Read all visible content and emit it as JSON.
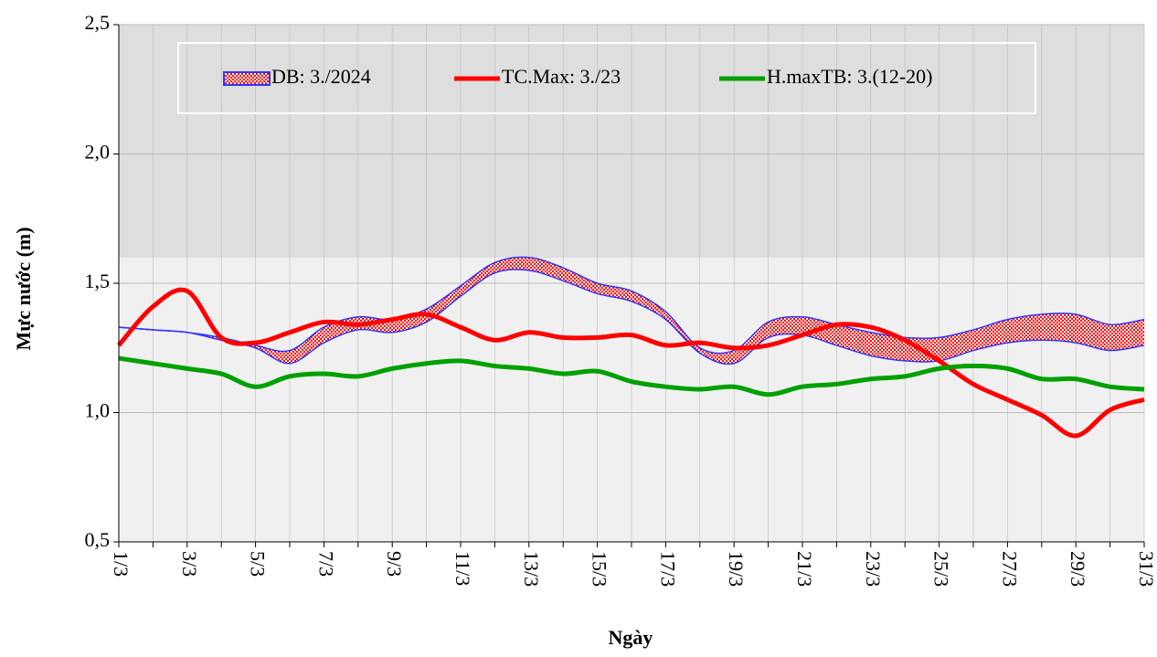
{
  "chart_data": {
    "type": "line",
    "x_label": "Ngày",
    "y_label": "Mực nước (m)",
    "categories": [
      "1/3",
      null,
      "3/3",
      null,
      "5/3",
      null,
      "7/3",
      null,
      "9/3",
      null,
      "11/3",
      null,
      "13/3",
      null,
      "15/3",
      null,
      "17/3",
      null,
      "19/3",
      null,
      "21/3",
      null,
      "23/3",
      null,
      "25/3",
      null,
      "27/3",
      null,
      "29/3",
      null,
      "31/3"
    ],
    "ylim": [
      0.5,
      2.5
    ],
    "yticks": [
      {
        "value": 0.5,
        "label": "0,5"
      },
      {
        "value": 1.0,
        "label": "1,0"
      },
      {
        "value": 1.5,
        "label": "1,5"
      },
      {
        "value": 2.0,
        "label": "2,0"
      },
      {
        "value": 2.5,
        "label": "2,5"
      }
    ],
    "series": [
      {
        "name": "DB: 3./2024",
        "type": "band",
        "color": "#ff0000",
        "border_color": "#3333ff",
        "upper": [
          1.33,
          1.32,
          1.31,
          1.29,
          1.26,
          1.24,
          1.33,
          1.37,
          1.36,
          1.4,
          1.49,
          1.58,
          1.6,
          1.56,
          1.5,
          1.47,
          1.39,
          1.25,
          1.24,
          1.35,
          1.37,
          1.34,
          1.31,
          1.29,
          1.29,
          1.32,
          1.36,
          1.38,
          1.38,
          1.34,
          1.36
        ],
        "lower": [
          1.33,
          1.32,
          1.31,
          1.28,
          1.25,
          1.19,
          1.27,
          1.32,
          1.31,
          1.35,
          1.45,
          1.54,
          1.55,
          1.51,
          1.46,
          1.43,
          1.36,
          1.23,
          1.19,
          1.29,
          1.3,
          1.26,
          1.22,
          1.2,
          1.2,
          1.24,
          1.27,
          1.28,
          1.27,
          1.24,
          1.26
        ]
      },
      {
        "name": "TC.Max: 3./23",
        "type": "line",
        "color": "#ff0000",
        "values": [
          1.26,
          1.41,
          1.47,
          1.29,
          1.27,
          1.31,
          1.35,
          1.34,
          1.36,
          1.38,
          1.33,
          1.28,
          1.31,
          1.29,
          1.29,
          1.3,
          1.26,
          1.27,
          1.25,
          1.26,
          1.3,
          1.34,
          1.33,
          1.28,
          1.2,
          1.11,
          1.05,
          0.99,
          0.91,
          1.01,
          1.05
        ]
      },
      {
        "name": "H.maxTB: 3.(12-20)",
        "type": "line",
        "color": "#00a000",
        "values": [
          1.21,
          1.19,
          1.17,
          1.15,
          1.1,
          1.14,
          1.15,
          1.14,
          1.17,
          1.19,
          1.2,
          1.18,
          1.17,
          1.15,
          1.16,
          1.12,
          1.1,
          1.09,
          1.1,
          1.07,
          1.1,
          1.11,
          1.13,
          1.14,
          1.17,
          1.18,
          1.17,
          1.13,
          1.13,
          1.1,
          1.09
        ]
      }
    ],
    "grid": true
  }
}
